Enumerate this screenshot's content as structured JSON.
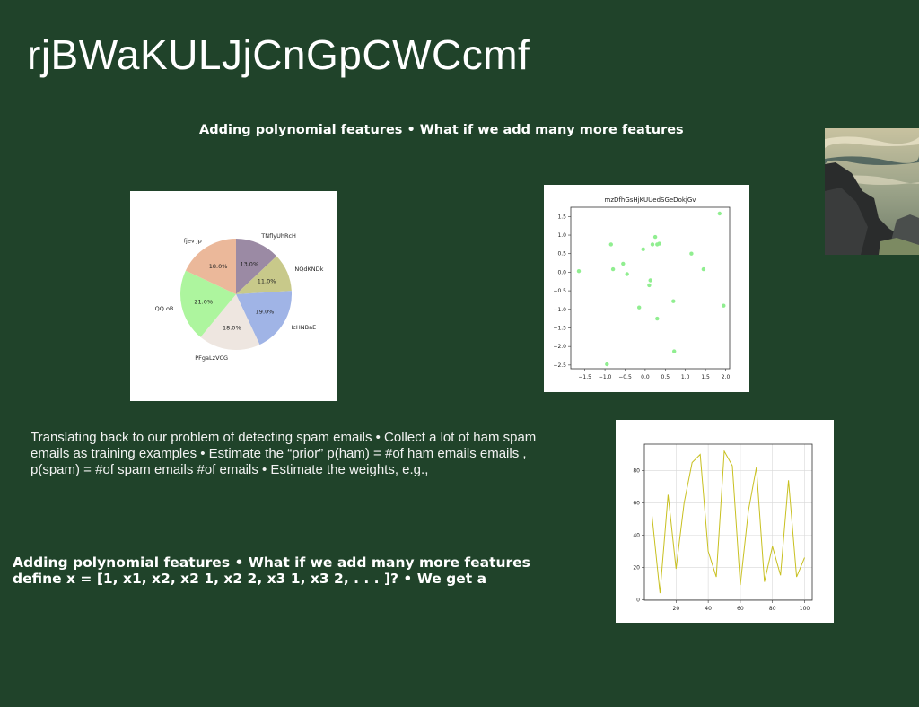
{
  "slide": {
    "title": "rjBWaKULJjCnGpCWCcmf",
    "subtitle": "Adding polynomial features • What if we add many more features",
    "paragraph": "Translating back to our problem of detecting spam emails • Collect a lot of ham spam emails as training examples • Estimate the “prior” p(ham) = #of ham emails emails , p(spam) = #of spam emails #of emails • Estimate the weights, e.g.,",
    "bold_paragraph": "Adding polynomial features • What if we add many more features define x = [1, x1, x2, x2 1, x2 2, x3 1, x3 2, . . . ]? • We get a"
  },
  "chart_data": [
    {
      "type": "pie",
      "labels": [
        "TNflyUhRcH",
        "NQdKNDk",
        "IcHNBaE",
        "PFgaLzVCG",
        "QQ oB",
        "fjev  Jp"
      ],
      "values": [
        13.0,
        11.0,
        19.0,
        18.0,
        21.0,
        18.0
      ],
      "value_labels": [
        "13.0%",
        "11.0%",
        "19.0%",
        "18.0%",
        "21.0%",
        "18.0%"
      ],
      "colors": [
        "#9b8aa4",
        "#c8c98a",
        "#a0b4e6",
        "#eee6e0",
        "#adf59e",
        "#ebb89a"
      ],
      "start_angle_deg": 90,
      "direction": "clockwise"
    },
    {
      "type": "scatter",
      "title": "mzDfhGsHjKUUedSGeDokjGv",
      "color": "#90ee90",
      "x": [
        -1.65,
        -0.85,
        -0.8,
        -0.55,
        -0.45,
        -0.15,
        -0.05,
        0.1,
        0.13,
        0.18,
        0.25,
        0.3,
        0.3,
        0.35,
        0.7,
        0.72,
        1.15,
        1.45,
        1.85,
        1.95,
        -0.95
      ],
      "y": [
        0.03,
        0.75,
        0.08,
        0.23,
        -0.05,
        -0.95,
        0.62,
        -0.35,
        -0.22,
        0.75,
        0.95,
        0.75,
        -1.25,
        0.77,
        -0.78,
        -2.13,
        0.5,
        0.08,
        1.58,
        -0.9,
        -2.48
      ],
      "xticks": [
        -1.5,
        -1.0,
        -0.5,
        0.0,
        0.5,
        1.0,
        1.5,
        2.0
      ],
      "yticks": [
        1.5,
        1.0,
        0.5,
        0.0,
        -0.5,
        -1.0,
        -1.5,
        -2.0,
        -2.5
      ],
      "xtick_labels": [
        "−1.5",
        "−1.0",
        "−0.5",
        "0.0",
        "0.5",
        "1.0",
        "1.5",
        "2.0"
      ],
      "ytick_labels": [
        "1.5",
        "1.0",
        "0.5",
        "0.0",
        "−0.5",
        "−1.0",
        "−1.5",
        "−2.0",
        "−2.5"
      ],
      "xlim": [
        -1.85,
        2.1
      ],
      "ylim": [
        -2.6,
        1.75
      ]
    },
    {
      "type": "line",
      "color": "#c8c020",
      "x": [
        5,
        10,
        15,
        20,
        25,
        30,
        35,
        40,
        45,
        50,
        55,
        60,
        65,
        70,
        75,
        80,
        85,
        90,
        95,
        100
      ],
      "y": [
        52,
        4,
        65,
        19,
        60,
        85,
        90,
        30,
        14,
        92,
        83,
        9,
        55,
        82,
        11,
        33,
        15,
        74,
        14,
        26
      ],
      "xticks": [
        20,
        40,
        60,
        80,
        100
      ],
      "yticks": [
        0,
        20,
        40,
        60,
        80
      ],
      "xtick_labels": [
        "20",
        "40",
        "60",
        "80",
        "100"
      ],
      "ytick_labels": [
        "0",
        "20",
        "40",
        "60",
        "80"
      ],
      "xlim": [
        0.25,
        104.75
      ],
      "ylim": [
        -0.4,
        96.4
      ],
      "grid": true
    }
  ]
}
